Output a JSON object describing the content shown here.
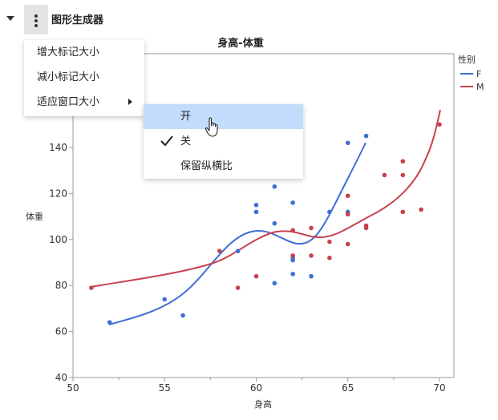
{
  "header": {
    "title": "图形生成器"
  },
  "menu": {
    "items": [
      "增大标记大小",
      "减小标记大小",
      "适应窗口大小"
    ]
  },
  "submenu": {
    "items": [
      "开",
      "关",
      "保留纵横比"
    ],
    "highlighted": "开",
    "checked": "关"
  },
  "legend": {
    "title": "性别",
    "entries": [
      {
        "label": "F",
        "color": "#3e6fd4"
      },
      {
        "label": "M",
        "color": "#c8414e"
      }
    ]
  },
  "chart_data": {
    "type": "scatter",
    "title": "身高-体重",
    "xlabel": "身高",
    "ylabel": "体重",
    "xlim": [
      50,
      70.8
    ],
    "ylim": [
      40,
      160
    ],
    "xticks": [
      50,
      55,
      60,
      65,
      70
    ],
    "yticks": [
      40,
      60,
      80,
      100,
      120,
      140
    ],
    "grid": false,
    "legend_position": "right",
    "series": [
      {
        "name": "F",
        "color": "#3e6fd4",
        "points": [
          [
            52,
            64
          ],
          [
            55,
            74
          ],
          [
            56,
            67
          ],
          [
            59,
            95
          ],
          [
            60,
            112
          ],
          [
            60,
            115
          ],
          [
            61,
            107
          ],
          [
            61,
            81
          ],
          [
            61,
            123
          ],
          [
            62,
            116
          ],
          [
            62,
            92
          ],
          [
            62,
            91
          ],
          [
            62,
            85
          ],
          [
            63,
            84
          ],
          [
            64,
            112
          ],
          [
            65,
            142
          ],
          [
            65,
            112
          ],
          [
            65,
            111
          ],
          [
            66,
            145
          ]
        ],
        "smoother": [
          [
            52,
            63
          ],
          [
            54,
            68
          ],
          [
            56,
            76
          ],
          [
            58,
            90
          ],
          [
            59.5,
            102
          ],
          [
            60.5,
            103
          ],
          [
            61.5,
            99
          ],
          [
            62.5,
            98
          ],
          [
            63.5,
            107
          ],
          [
            64.5,
            125
          ],
          [
            66,
            142
          ]
        ]
      },
      {
        "name": "M",
        "color": "#c8414e",
        "points": [
          [
            51,
            79
          ],
          [
            58,
            95
          ],
          [
            59,
            79
          ],
          [
            60,
            84
          ],
          [
            62,
            104
          ],
          [
            62,
            93
          ],
          [
            63,
            105
          ],
          [
            63,
            93
          ],
          [
            64,
            99
          ],
          [
            64,
            92
          ],
          [
            65,
            119
          ],
          [
            65,
            111
          ],
          [
            65,
            98
          ],
          [
            66,
            105
          ],
          [
            66,
            106
          ],
          [
            67,
            128
          ],
          [
            68,
            134
          ],
          [
            68,
            128
          ],
          [
            68,
            112
          ],
          [
            69,
            113
          ],
          [
            70,
            150
          ]
        ]
      }
    ]
  }
}
